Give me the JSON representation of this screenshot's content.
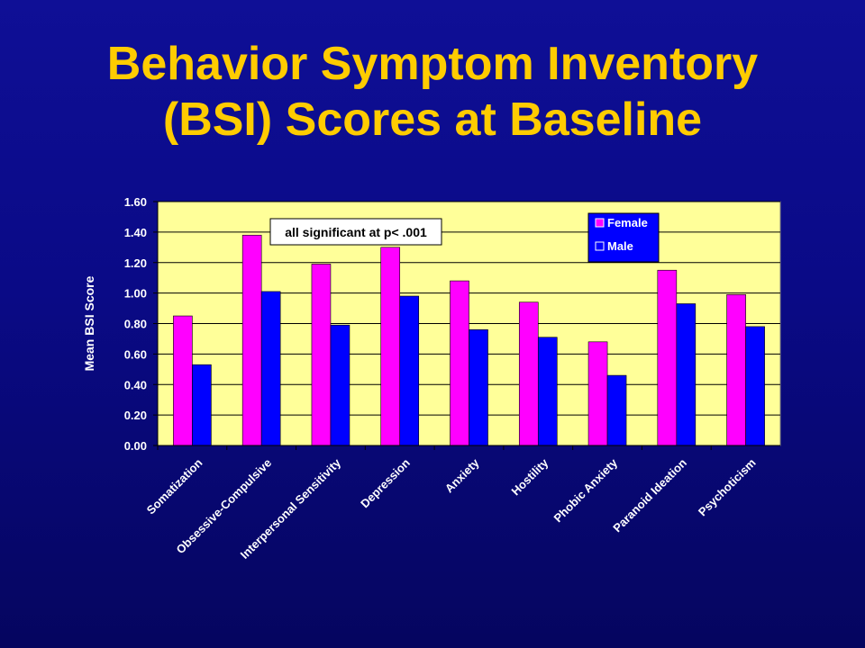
{
  "title_line1": "Behavior Symptom Inventory",
  "title_line2": "(BSI) Scores at Baseline",
  "colors": {
    "background": "#0a0a86",
    "title": "#ffcc00",
    "plot_area": "#ffff99",
    "female": "#ff00ff",
    "male": "#0000ff"
  },
  "chart_data": {
    "type": "bar",
    "title": "",
    "xlabel": "",
    "ylabel": "Mean BSI Score",
    "ylim": [
      0,
      1.6
    ],
    "yticks": [
      "0.00",
      "0.20",
      "0.40",
      "0.60",
      "0.80",
      "1.00",
      "1.20",
      "1.40",
      "1.60"
    ],
    "grid": true,
    "legend_position": "top-right",
    "categories": [
      "Somatization",
      "Obsessive-Compulsive",
      "Interpersonal Sensitivity",
      "Depression",
      "Anxiety",
      "Hostility",
      "Phobic Anxiety",
      "Paranoid Ideation",
      "Psychoticism"
    ],
    "series": [
      {
        "name": "Female",
        "values": [
          0.85,
          1.38,
          1.19,
          1.3,
          1.08,
          0.94,
          0.68,
          1.15,
          0.99
        ]
      },
      {
        "name": "Male",
        "values": [
          0.53,
          1.01,
          0.79,
          0.98,
          0.76,
          0.71,
          0.46,
          0.93,
          0.78
        ]
      }
    ],
    "annotation": "all significant at p< .001"
  }
}
